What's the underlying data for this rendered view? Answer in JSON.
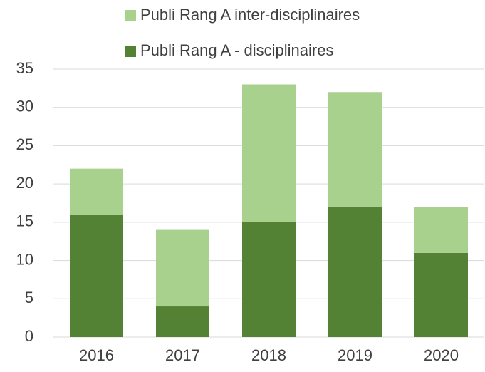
{
  "chart_data": {
    "type": "stacked_bar",
    "categories": [
      "2016",
      "2017",
      "2018",
      "2019",
      "2020"
    ],
    "series": [
      {
        "name": "Publi Rang A - disciplinaires",
        "color": "#548235",
        "values": [
          16,
          4,
          15,
          17,
          11
        ]
      },
      {
        "name": "Publi Rang A inter-disciplinaires",
        "color": "#a9d18e",
        "values": [
          6,
          10,
          18,
          15,
          6
        ]
      }
    ],
    "ylim": [
      0,
      35
    ],
    "yticks": [
      0,
      5,
      10,
      15,
      20,
      25,
      30,
      35
    ],
    "grid": true,
    "legend": "top"
  }
}
